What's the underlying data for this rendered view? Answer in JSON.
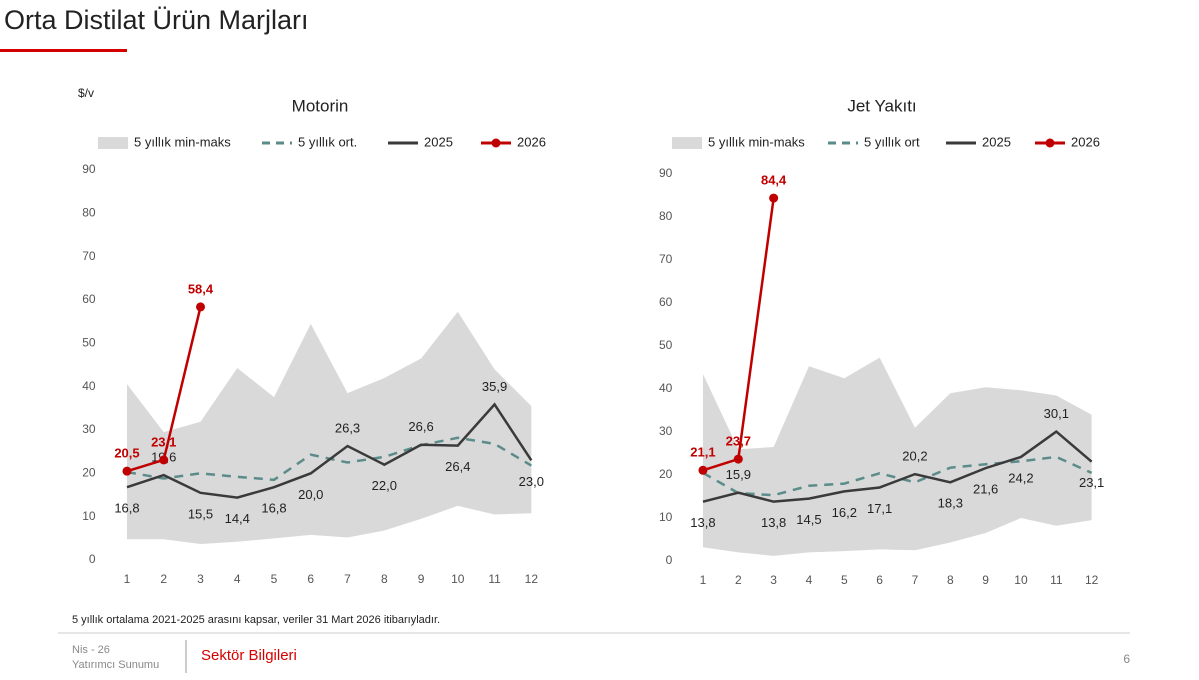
{
  "page": {
    "title": "Orta Distilat Ürün Marjları",
    "footnote": "5 yıllık ortalama 2021-2025 arasını kapsar, veriler 31 Mart 2026 itibarıyladır.",
    "footer": {
      "date": "Nis - 26",
      "doc": "Yatırımcı Sunumu",
      "section": "Sektör Bilgileri",
      "page": "6"
    }
  },
  "chart_data": [
    {
      "type": "line",
      "title": "Motorin",
      "ylabel": "$/v",
      "categories": [
        "1",
        "2",
        "3",
        "4",
        "5",
        "6",
        "7",
        "8",
        "9",
        "10",
        "11",
        "12"
      ],
      "ylim": [
        0,
        90
      ],
      "yticks": [
        0,
        10,
        20,
        30,
        40,
        50,
        60,
        70,
        80,
        90
      ],
      "band": {
        "name": "5 yıllık min-maks",
        "color": "#d9d9d9",
        "low": [
          4.8,
          4.8,
          3.7,
          4.2,
          5.0,
          5.8,
          5.2,
          6.8,
          9.5,
          12.5,
          10.5,
          10.8
        ],
        "high": [
          40.6,
          29.5,
          31.9,
          44.3,
          37.6,
          54.5,
          38.5,
          42.0,
          46.5,
          57.3,
          44.0,
          35.5
        ]
      },
      "series": [
        {
          "name": "5 yıllık ort.",
          "color": "#5b8c8a",
          "dash": true,
          "values": [
            20.3,
            18.8,
            20.0,
            19.2,
            18.5,
            24.3,
            22.5,
            23.8,
            26.5,
            28.2,
            26.8,
            21.8
          ]
        },
        {
          "name": "2025",
          "color": "#3a3a3a",
          "values": [
            16.8,
            19.6,
            15.5,
            14.4,
            16.8,
            20.0,
            26.3,
            22.0,
            26.6,
            26.4,
            35.9,
            23.0
          ],
          "value_labels": [
            "16,8",
            "19,6",
            "15,5",
            "14,4",
            "16,8",
            "20,0",
            "26,3",
            "22,0",
            "26,6",
            "26,4",
            "35,9",
            "23,0"
          ]
        },
        {
          "name": "2026",
          "color": "#c00000",
          "markers": true,
          "values": [
            20.5,
            23.1,
            58.4,
            null,
            null,
            null,
            null,
            null,
            null,
            null,
            null,
            null
          ],
          "value_labels": [
            "20,5",
            "23,1",
            "58,4",
            null,
            null,
            null,
            null,
            null,
            null,
            null,
            null,
            null
          ]
        }
      ]
    },
    {
      "type": "line",
      "title": "Jet Yakıtı",
      "categories": [
        "1",
        "2",
        "3",
        "4",
        "5",
        "6",
        "7",
        "8",
        "9",
        "10",
        "11",
        "12"
      ],
      "ylim": [
        0,
        90
      ],
      "yticks": [
        0,
        10,
        20,
        30,
        40,
        50,
        60,
        70,
        80,
        90
      ],
      "band": {
        "name": "5 yıllık min-maks",
        "color": "#d9d9d9",
        "low": [
          3.2,
          2.0,
          1.2,
          2.0,
          2.3,
          2.7,
          2.5,
          4.3,
          6.5,
          10.0,
          8.2,
          9.5
        ],
        "high": [
          43.5,
          26.0,
          26.5,
          45.3,
          42.5,
          47.3,
          31.0,
          39.0,
          40.4,
          39.7,
          38.5,
          34.0
        ]
      },
      "series": [
        {
          "name": "5 yıllık ort",
          "color": "#5b8c8a",
          "dash": true,
          "values": [
            20.5,
            15.8,
            15.3,
            17.5,
            18.0,
            20.4,
            18.3,
            21.7,
            22.5,
            23.2,
            24.2,
            20.5
          ]
        },
        {
          "name": "2025",
          "color": "#3a3a3a",
          "values": [
            13.8,
            15.9,
            13.8,
            14.5,
            16.2,
            17.1,
            20.2,
            18.3,
            21.6,
            24.2,
            30.1,
            23.1
          ],
          "value_labels": [
            "13,8",
            "15,9",
            "13,8",
            "14,5",
            "16,2",
            "17,1",
            "20,2",
            "18,3",
            "21,6",
            "24,2",
            "30,1",
            "23,1"
          ]
        },
        {
          "name": "2026",
          "color": "#c00000",
          "markers": true,
          "values": [
            21.1,
            23.7,
            84.4,
            null,
            null,
            null,
            null,
            null,
            null,
            null,
            null,
            null
          ],
          "value_labels": [
            "21,1",
            "23,7",
            "84,4",
            null,
            null,
            null,
            null,
            null,
            null,
            null,
            null,
            null
          ]
        }
      ]
    }
  ]
}
